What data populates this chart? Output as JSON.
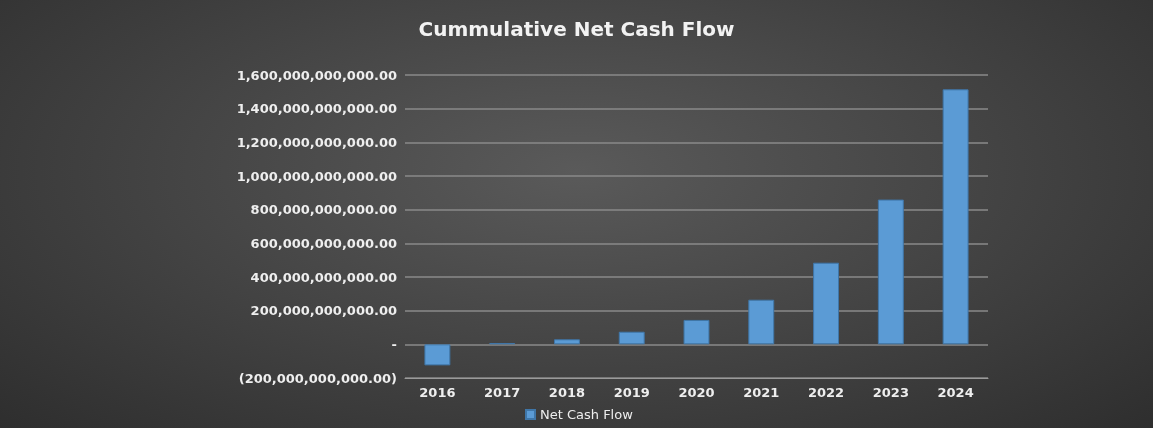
{
  "chart_data": {
    "type": "bar",
    "title": "Cummulative Net Cash Flow",
    "categories": [
      "2016",
      "2017",
      "2018",
      "2019",
      "2020",
      "2021",
      "2022",
      "2023",
      "2024"
    ],
    "series": [
      {
        "name": "Net Cash Flow",
        "color": "#5b9bd5",
        "values": [
          -125000000000,
          8000000000,
          30000000000,
          75000000000,
          145000000000,
          265000000000,
          485000000000,
          860000000000,
          1515000000000
        ]
      }
    ],
    "ylim": [
      -200000000000,
      1600000000000
    ],
    "yticks": [
      {
        "value": -200000000000,
        "label": "(200,000,000,000.00)"
      },
      {
        "value": 0,
        "label": "-"
      },
      {
        "value": 200000000000,
        "label": "200,000,000,000.00"
      },
      {
        "value": 400000000000,
        "label": "400,000,000,000.00"
      },
      {
        "value": 600000000000,
        "label": "600,000,000,000.00"
      },
      {
        "value": 800000000000,
        "label": "800,000,000,000.00"
      },
      {
        "value": 1000000000000,
        "label": "1,000,000,000,000.00"
      },
      {
        "value": 1200000000000,
        "label": "1,200,000,000,000.00"
      },
      {
        "value": 1400000000000,
        "label": "1,400,000,000,000.00"
      },
      {
        "value": 1600000000000,
        "label": "1,600,000,000,000.00"
      }
    ],
    "grid": "y",
    "legend": "bottom"
  }
}
